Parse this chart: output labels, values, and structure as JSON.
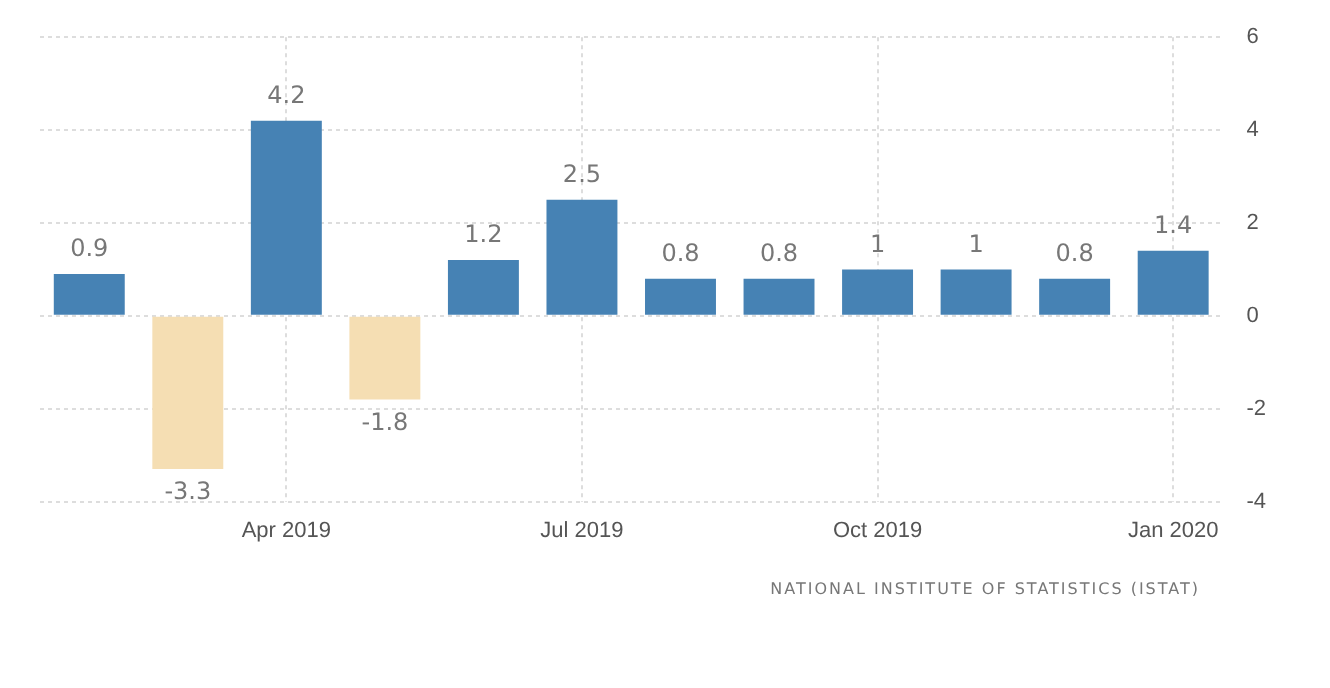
{
  "chart_data": {
    "type": "bar",
    "categories": [
      null,
      null,
      "Apr 2019",
      null,
      null,
      "Jul 2019",
      null,
      null,
      "Oct 2019",
      null,
      null,
      "Jan 2020"
    ],
    "values": [
      0.9,
      -3.3,
      4.2,
      -1.8,
      1.2,
      2.5,
      0.8,
      0.8,
      1,
      1,
      0.8,
      1.4
    ],
    "colors": [
      "#4682b4",
      "#f5deb3",
      "#4682b4",
      "#f5deb3",
      "#4682b4",
      "#4682b4",
      "#4682b4",
      "#4682b4",
      "#4682b4",
      "#4682b4",
      "#4682b4",
      "#4682b4"
    ],
    "ylim": [
      -4,
      6
    ],
    "yticks": [
      -4,
      -2,
      0,
      2,
      4,
      6
    ],
    "grid": true,
    "data_labels": true,
    "annotations": [
      "NATIONAL INSTITUTE OF STATISTICS (ISTAT)"
    ]
  }
}
